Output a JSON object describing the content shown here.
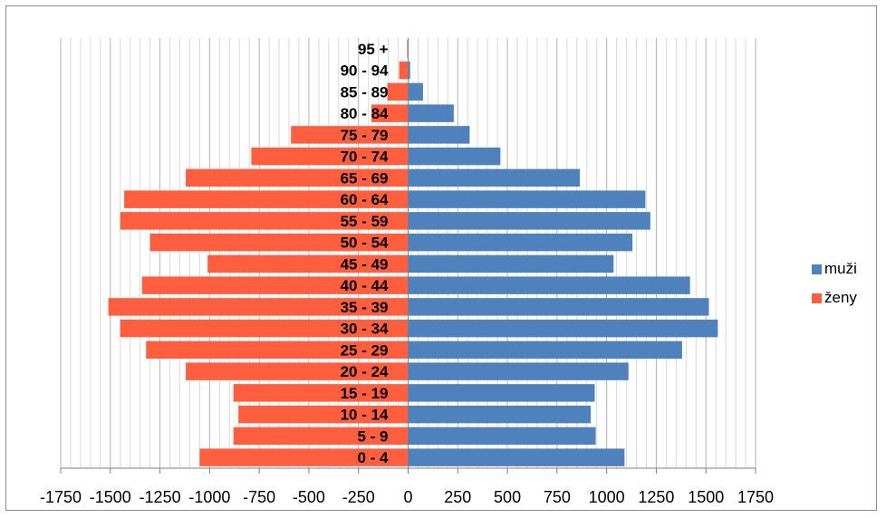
{
  "chart_data": {
    "type": "bar",
    "orientation": "horizontal",
    "stacked_population_pyramid": true,
    "categories": [
      "0 - 4",
      "5 - 9",
      "10 - 14",
      "15 - 19",
      "20 - 24",
      "25 - 29",
      "30 - 34",
      "35 - 39",
      "40 - 44",
      "45 - 49",
      "50 - 54",
      "55 - 59",
      "60 - 64",
      "65 - 69",
      "70 - 74",
      "75 - 79",
      "80 - 84",
      "85 - 89",
      "90 - 94",
      "95 +"
    ],
    "series": [
      {
        "name": "muži",
        "color": "#4f81bd",
        "values": [
          1090,
          945,
          920,
          940,
          1110,
          1380,
          1560,
          1515,
          1420,
          1035,
          1130,
          1220,
          1195,
          865,
          465,
          310,
          230,
          75,
          10,
          0
        ]
      },
      {
        "name": "ženy",
        "color": "#ff5f3f",
        "values": [
          -1050,
          -880,
          -855,
          -880,
          -1120,
          -1320,
          -1450,
          -1510,
          -1340,
          -1010,
          -1300,
          -1450,
          -1430,
          -1120,
          -790,
          -590,
          -185,
          -105,
          -45,
          -5
        ]
      }
    ],
    "x_ticks": [
      "-1750",
      "-1500",
      "-1250",
      "-1000",
      "-750",
      "-500",
      "-250",
      "0",
      "250",
      "500",
      "750",
      "1000",
      "1250",
      "1500",
      "1750"
    ],
    "xlim": [
      -1750,
      1750
    ],
    "xlabel": "",
    "ylabel": "",
    "title": "",
    "grid": "vertical",
    "legend_position": "right"
  }
}
